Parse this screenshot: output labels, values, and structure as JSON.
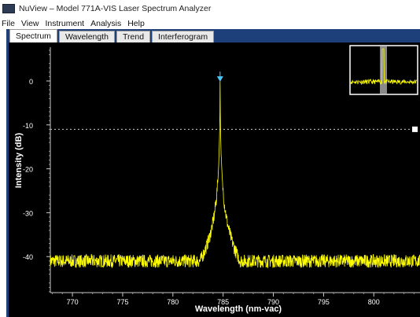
{
  "window": {
    "title": "NuView – Model 771A-VIS Laser Spectrum Analyzer"
  },
  "menu": [
    "File",
    "View",
    "Instrument",
    "Analysis",
    "Help"
  ],
  "tabs": [
    {
      "label": "Spectrum",
      "active": true
    },
    {
      "label": "Wavelength",
      "active": false
    },
    {
      "label": "Trend",
      "active": false
    },
    {
      "label": "Interferogram",
      "active": false
    }
  ],
  "colors": {
    "frame": "#1d3f7a",
    "plot_background": "#000000",
    "trace": "#ffff00",
    "marker": "#4fc3f7",
    "axis_text": "#ffffff"
  },
  "chart_data": {
    "type": "line",
    "xlabel": "Wavelength (nm-vac)",
    "ylabel": "Intensity (dB)",
    "xlim": [
      767.8,
      804.6
    ],
    "ylim": [
      -48.2,
      7.7
    ],
    "x_ticks": [
      770,
      775,
      780,
      785,
      790,
      795,
      800
    ],
    "y_ticks": [
      0,
      -10,
      -20,
      -30,
      -40
    ],
    "series": [
      {
        "peak_wavelength": 784.7,
        "peak_intensity": 0,
        "noise_floor": -41
      }
    ],
    "threshold_line": -11,
    "peak_marker_x": 784.7,
    "grid": false,
    "inset": {
      "type": "overview",
      "position": "top-right"
    }
  }
}
